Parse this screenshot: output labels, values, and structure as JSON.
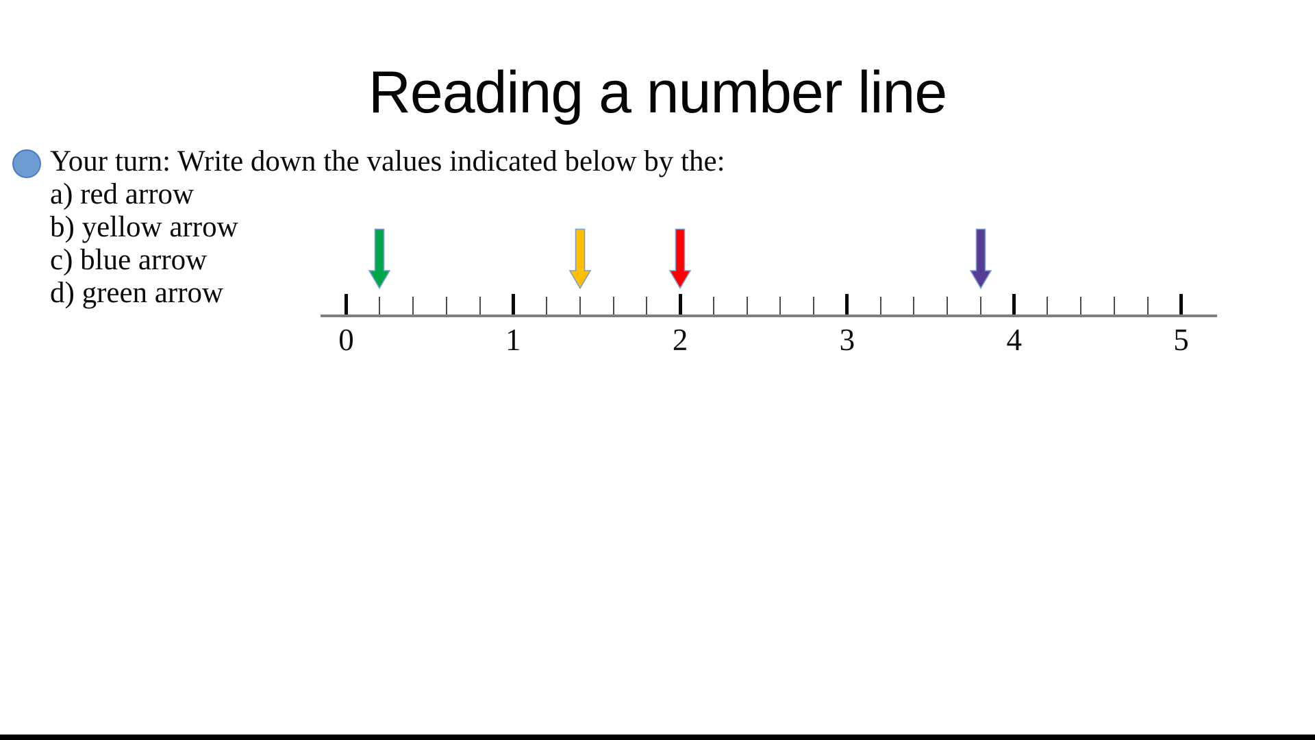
{
  "slide": {
    "title": "Reading a number line",
    "bullet": {
      "text": "Your turn: Write down the values indicated below by the:",
      "items": [
        "a) red arrow",
        "b) yellow arrow",
        "c) blue arrow",
        "d) green arrow"
      ],
      "dot_fill": "#6E9CD2",
      "dot_border": "#4A7CC0"
    }
  },
  "number_line": {
    "min": 0,
    "max": 5,
    "minor_step": 0.2,
    "major_step": 1,
    "labels": [
      "0",
      "1",
      "2",
      "3",
      "4",
      "5"
    ],
    "axis_color": "#7f7f7f",
    "major_tick_color": "#0a0a0a",
    "minor_tick_color": "#4a4a4a",
    "arrows": [
      {
        "name": "green-arrow",
        "color_label": "green",
        "fill": "#00A64A",
        "outline": "#7C9CD1",
        "value": 0.2
      },
      {
        "name": "yellow-arrow",
        "color_label": "yellow",
        "fill": "#FFC000",
        "outline": "#7C9CD1",
        "value": 1.4
      },
      {
        "name": "red-arrow",
        "color_label": "red",
        "fill": "#FE0000",
        "outline": "#7C9CD1",
        "value": 2.0
      },
      {
        "name": "blue-arrow",
        "color_label": "blue",
        "fill": "#563D94",
        "outline": "#7C9CD1",
        "value": 3.8
      }
    ]
  }
}
